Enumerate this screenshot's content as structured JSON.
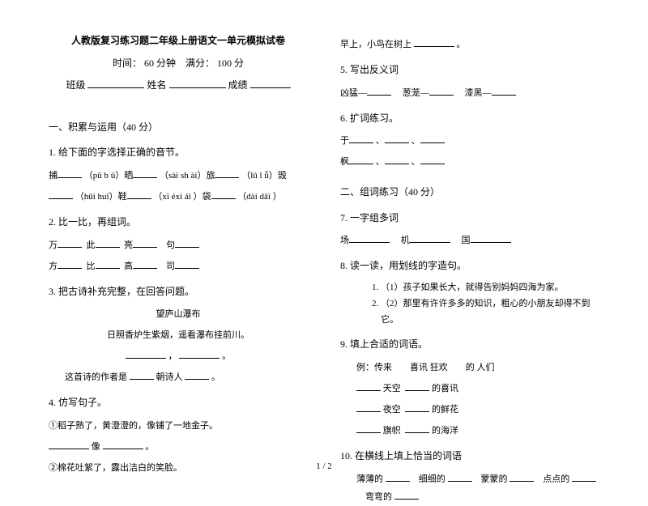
{
  "header": {
    "title": "人教版复习练习题二年级上册语文一单元模拟试卷",
    "time_label": "时间：",
    "time_value": "60 分钟",
    "score_label": "满分：",
    "score_value": "100 分",
    "class_label": "班级",
    "name_label": "姓名",
    "grade_label": "成绩"
  },
  "sec1": {
    "title": "一、积累与运用（40 分）",
    "q1": {
      "label": "1. 给下面的字选择正确的音节。",
      "l1a": "捕",
      "l1b": "（pǔ b ǔ）晒",
      "l1c": "（sài sh ài）旅",
      "l1d": "（lǔ l ǚ）毁",
      "l2a": "（hǔi huǐ）鞋",
      "l2b": "（xi éxi ái ）袋",
      "l2c": "（dài dāi ）"
    },
    "q2": {
      "label": "2. 比一比，再组词。",
      "r1": [
        "万",
        "此",
        "亮",
        "句"
      ],
      "r2": [
        "方",
        "比",
        "高",
        "司"
      ]
    },
    "q3": {
      "label": "3. 把古诗补充完整，在回答问题。",
      "poem_title": "望庐山瀑布",
      "poem_line": "日照香炉生紫烟，遥看瀑布挂前川。",
      "poem_blank_sep": "，",
      "poem_end": "。",
      "author_line_a": "这首诗的作者是",
      "author_line_b": "朝诗人",
      "author_end": "。"
    },
    "q4": {
      "label": "4. 仿写句子。",
      "s1": "①稻子熟了，黄澄澄的，像铺了一地金子。",
      "s2a": "像",
      "s2b": "。",
      "s3": "②棉花吐絮了，露出洁白的笑脸。"
    }
  },
  "right": {
    "top": {
      "a": "早上，小鸟在树上",
      "b": "。"
    },
    "q5": {
      "label": "5. 写出反义词",
      "w1": "凶猛—",
      "w2": "葱茏—",
      "w3": "漆黑—"
    },
    "q6": {
      "label": "6. 扩词练习。",
      "c1": "于",
      "c2": "枫",
      "sep": "、"
    },
    "sec2": "二、组词练习（40 分）",
    "q7": {
      "label": "7. 一字组多词",
      "w1": "场",
      "w2": "机",
      "w3": "国"
    },
    "q8": {
      "label": "8. 读一读，用划线的字造句。",
      "li1": "（1）孩子如果长大，就得告别妈妈四海为家。",
      "li2": "（2）那里有许许多多的知识，粗心的小朋友却得不到它。"
    },
    "q9": {
      "label": "9. 填上合适的词语。",
      "ex": "例：传来　　喜讯  狂欢　　的 人们",
      "r1a": "天空",
      "r1b": "的喜讯",
      "r2a": "夜空",
      "r2b": "的鲜花",
      "r3a": "旗帜",
      "r3b": "的海洋"
    },
    "q10": {
      "label": "10. 在横线上填上恰当的词语",
      "w1": "薄薄的",
      "w2": "细细的",
      "w3": "蒙蒙的",
      "w4": "点点的",
      "w5": "弯弯的"
    }
  },
  "footer": "1 / 2"
}
